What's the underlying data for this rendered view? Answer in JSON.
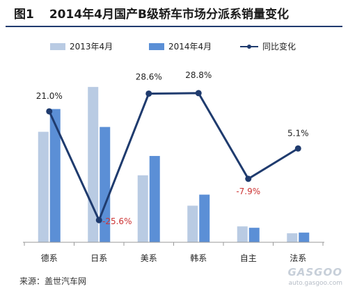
{
  "chart_data": {
    "type": "bar",
    "title_prefix": "图1",
    "title": "2014年4月国产B级轿车市场分派系销量变化",
    "categories": [
      "德系",
      "日系",
      "美系",
      "韩系",
      "自主",
      "法系"
    ],
    "series": [
      {
        "name": "2013年4月",
        "color": "#b9cbe3",
        "values": [
          160,
          225,
          97,
          53,
          23,
          13
        ]
      },
      {
        "name": "2014年4月",
        "color": "#5b8fd6",
        "values": [
          193,
          167,
          125,
          69,
          21,
          14
        ]
      }
    ],
    "line_series": {
      "name": "同比变化",
      "color": "#1f3b6e",
      "values": [
        21.0,
        -25.6,
        28.6,
        28.8,
        -7.9,
        5.1
      ],
      "labels": [
        "21.0%",
        "-25.6%",
        "28.6%",
        "28.8%",
        "-7.9%",
        "5.1%"
      ],
      "negative_label_color": "#cc3333"
    },
    "bar_ylim": [
      0,
      240
    ],
    "line_ylim": [
      -30,
      35
    ],
    "legend_position": "top",
    "grid": false
  },
  "source": "来源：盖世汽车网",
  "watermark": {
    "logo": "GASGOO",
    "url": "auto.gasgoo.com"
  }
}
